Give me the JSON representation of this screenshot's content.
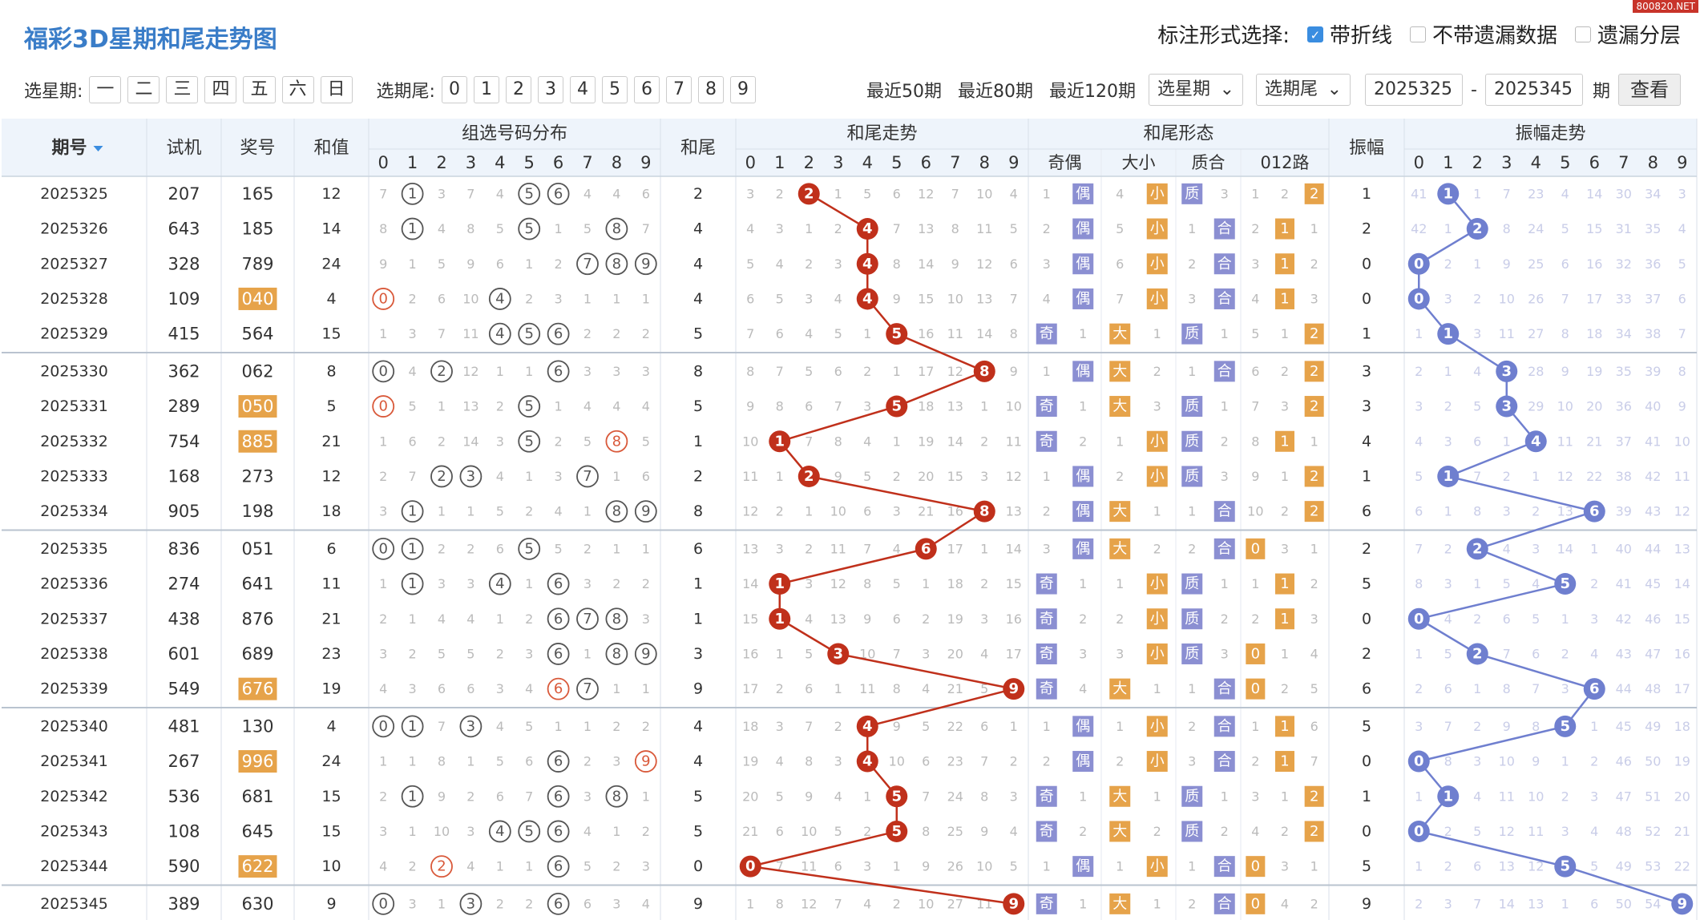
{
  "title": "福彩3D星期和尾走势图",
  "site_tag": "800820.NET",
  "mark": {
    "label": "标注形式选择:",
    "options": [
      {
        "label": "带折线",
        "checked": true
      },
      {
        "label": "不带遗漏数据",
        "checked": false
      },
      {
        "label": "遗漏分层",
        "checked": false
      }
    ]
  },
  "filter": {
    "weekday_label": "选星期:",
    "weekdays": [
      "一",
      "二",
      "三",
      "四",
      "五",
      "六",
      "日"
    ],
    "tail_label": "选期尾:",
    "tails": [
      "0",
      "1",
      "2",
      "3",
      "4",
      "5",
      "6",
      "7",
      "8",
      "9"
    ],
    "recent": [
      "最近50期",
      "最近80期",
      "最近120期"
    ],
    "weekday_select": "选星期",
    "tail_select": "选期尾",
    "from": "2025325",
    "dash": "-",
    "to": "2025345",
    "unit": "期",
    "submit": "查看"
  },
  "columns": {
    "issue": "期号",
    "trial": "试机",
    "prize": "奖号",
    "sum": "和值",
    "group_dist": "组选号码分布",
    "tail": "和尾",
    "tail_trend": "和尾走势",
    "tail_form": "和尾形态",
    "amp": "振幅",
    "amp_trend": "振幅走势",
    "form_sub": [
      "奇偶",
      "大小",
      "质合",
      "012路"
    ],
    "digits": [
      "0",
      "1",
      "2",
      "3",
      "4",
      "5",
      "6",
      "7",
      "8",
      "9"
    ]
  },
  "labels": {
    "odd": "奇",
    "even": "偶",
    "big": "大",
    "small": "小",
    "prime": "质",
    "composite": "合"
  },
  "colors": {
    "accent": "#3a7dc8",
    "tail_ball": "#c0301b",
    "amp_ball": "#6f7fcf",
    "highlight": "#e6a34a",
    "form_badge": "#8b8fd2"
  },
  "rows": [
    {
      "issue": "2025325",
      "trial": "207",
      "prize": "165",
      "sum": "12",
      "dist": [
        "7",
        "●",
        "3",
        "7",
        "4",
        "●",
        "●",
        "4",
        "4",
        "6"
      ],
      "tail": "2",
      "trend": [
        "3",
        "2",
        "2",
        "1",
        "5",
        "6",
        "12",
        "7",
        "10",
        "4"
      ],
      "oe": [
        "1",
        "偶"
      ],
      "bs": [
        "4",
        "小"
      ],
      "pc": [
        "质",
        "3"
      ],
      "r012": [
        "1",
        "2",
        "2"
      ],
      "amp": "1",
      "ampt": [
        "41",
        "1",
        "1",
        "7",
        "23",
        "4",
        "14",
        "30",
        "34",
        "3"
      ],
      "hl": false
    },
    {
      "issue": "2025326",
      "trial": "643",
      "prize": "185",
      "sum": "14",
      "dist": [
        "8",
        "●",
        "4",
        "8",
        "5",
        "●",
        "1",
        "5",
        "●",
        "7"
      ],
      "tail": "4",
      "trend": [
        "4",
        "3",
        "1",
        "2",
        "4",
        "7",
        "13",
        "8",
        "11",
        "5"
      ],
      "oe": [
        "2",
        "偶"
      ],
      "bs": [
        "5",
        "小"
      ],
      "pc": [
        "1",
        "合"
      ],
      "r012": [
        "2",
        "1",
        "1"
      ],
      "amp": "2",
      "ampt": [
        "42",
        "1",
        "2",
        "8",
        "24",
        "5",
        "15",
        "31",
        "35",
        "4"
      ],
      "hl": false
    },
    {
      "issue": "2025327",
      "trial": "328",
      "prize": "789",
      "sum": "24",
      "dist": [
        "9",
        "1",
        "5",
        "9",
        "6",
        "1",
        "2",
        "●",
        "●",
        "●"
      ],
      "tail": "4",
      "trend": [
        "5",
        "4",
        "2",
        "3",
        "4",
        "8",
        "14",
        "9",
        "12",
        "6"
      ],
      "oe": [
        "3",
        "偶"
      ],
      "bs": [
        "6",
        "小"
      ],
      "pc": [
        "2",
        "合"
      ],
      "r012": [
        "3",
        "1",
        "2"
      ],
      "amp": "0",
      "ampt": [
        "0",
        "2",
        "1",
        "9",
        "25",
        "6",
        "16",
        "32",
        "36",
        "5"
      ],
      "hl": false
    },
    {
      "issue": "2025328",
      "trial": "109",
      "prize": "040",
      "sum": "4",
      "dist": [
        "●",
        "2",
        "6",
        "10",
        "●",
        "2",
        "3",
        "1",
        "1",
        "1"
      ],
      "tail": "4",
      "trend": [
        "6",
        "5",
        "3",
        "4",
        "4",
        "9",
        "15",
        "10",
        "13",
        "7"
      ],
      "oe": [
        "4",
        "偶"
      ],
      "bs": [
        "7",
        "小"
      ],
      "pc": [
        "3",
        "合"
      ],
      "r012": [
        "4",
        "1",
        "3"
      ],
      "amp": "0",
      "ampt": [
        "0",
        "3",
        "2",
        "10",
        "26",
        "7",
        "17",
        "33",
        "37",
        "6"
      ],
      "hl": true
    },
    {
      "issue": "2025329",
      "trial": "415",
      "prize": "564",
      "sum": "15",
      "dist": [
        "1",
        "3",
        "7",
        "11",
        "●",
        "●",
        "●",
        "2",
        "2",
        "2"
      ],
      "tail": "5",
      "trend": [
        "7",
        "6",
        "4",
        "5",
        "1",
        "5",
        "16",
        "11",
        "14",
        "8"
      ],
      "oe": [
        "奇",
        "1"
      ],
      "bs": [
        "大",
        "1"
      ],
      "pc": [
        "质",
        "1"
      ],
      "r012": [
        "5",
        "1",
        "2"
      ],
      "amp": "1",
      "ampt": [
        "1",
        "1",
        "3",
        "11",
        "27",
        "8",
        "18",
        "34",
        "38",
        "7"
      ],
      "hl": false
    },
    {
      "issue": "2025330",
      "trial": "362",
      "prize": "062",
      "sum": "8",
      "dist": [
        "●",
        "4",
        "●",
        "12",
        "1",
        "1",
        "●",
        "3",
        "3",
        "3"
      ],
      "tail": "8",
      "trend": [
        "8",
        "7",
        "5",
        "6",
        "2",
        "1",
        "17",
        "12",
        "8",
        "9"
      ],
      "oe": [
        "1",
        "偶"
      ],
      "bs": [
        "大",
        "2"
      ],
      "pc": [
        "1",
        "合"
      ],
      "r012": [
        "6",
        "2",
        "2"
      ],
      "amp": "3",
      "ampt": [
        "2",
        "1",
        "4",
        "3",
        "28",
        "9",
        "19",
        "35",
        "39",
        "8"
      ],
      "hl": false
    },
    {
      "issue": "2025331",
      "trial": "289",
      "prize": "050",
      "sum": "5",
      "dist": [
        "●",
        "5",
        "1",
        "13",
        "2",
        "●",
        "1",
        "4",
        "4",
        "4"
      ],
      "tail": "5",
      "trend": [
        "9",
        "8",
        "6",
        "7",
        "3",
        "5",
        "18",
        "13",
        "1",
        "10"
      ],
      "oe": [
        "奇",
        "1"
      ],
      "bs": [
        "大",
        "3"
      ],
      "pc": [
        "质",
        "1"
      ],
      "r012": [
        "7",
        "3",
        "2"
      ],
      "amp": "3",
      "ampt": [
        "3",
        "2",
        "5",
        "3",
        "29",
        "10",
        "20",
        "36",
        "40",
        "9"
      ],
      "hl": true
    },
    {
      "issue": "2025332",
      "trial": "754",
      "prize": "885",
      "sum": "21",
      "dist": [
        "1",
        "6",
        "2",
        "14",
        "3",
        "●",
        "2",
        "5",
        "●",
        "5"
      ],
      "tail": "1",
      "trend": [
        "10",
        "1",
        "7",
        "8",
        "4",
        "1",
        "19",
        "14",
        "2",
        "11"
      ],
      "oe": [
        "奇",
        "2"
      ],
      "bs": [
        "1",
        "小"
      ],
      "pc": [
        "质",
        "2"
      ],
      "r012": [
        "8",
        "1",
        "1"
      ],
      "amp": "4",
      "ampt": [
        "4",
        "3",
        "6",
        "1",
        "4",
        "11",
        "21",
        "37",
        "41",
        "10"
      ],
      "hl": true
    },
    {
      "issue": "2025333",
      "trial": "168",
      "prize": "273",
      "sum": "12",
      "dist": [
        "2",
        "7",
        "●",
        "●",
        "4",
        "1",
        "3",
        "●",
        "1",
        "6"
      ],
      "tail": "2",
      "trend": [
        "11",
        "1",
        "2",
        "9",
        "5",
        "2",
        "20",
        "15",
        "3",
        "12"
      ],
      "oe": [
        "1",
        "偶"
      ],
      "bs": [
        "2",
        "小"
      ],
      "pc": [
        "质",
        "3"
      ],
      "r012": [
        "9",
        "1",
        "2"
      ],
      "amp": "1",
      "ampt": [
        "5",
        "1",
        "7",
        "2",
        "1",
        "12",
        "22",
        "38",
        "42",
        "11"
      ],
      "hl": false
    },
    {
      "issue": "2025334",
      "trial": "905",
      "prize": "198",
      "sum": "18",
      "dist": [
        "3",
        "●",
        "1",
        "1",
        "5",
        "2",
        "4",
        "1",
        "●",
        "●"
      ],
      "tail": "8",
      "trend": [
        "12",
        "2",
        "1",
        "10",
        "6",
        "3",
        "21",
        "16",
        "8",
        "13"
      ],
      "oe": [
        "2",
        "偶"
      ],
      "bs": [
        "大",
        "1"
      ],
      "pc": [
        "1",
        "合"
      ],
      "r012": [
        "10",
        "2",
        "2"
      ],
      "amp": "6",
      "ampt": [
        "6",
        "1",
        "8",
        "3",
        "2",
        "13",
        "6",
        "39",
        "43",
        "12"
      ],
      "hl": false
    },
    {
      "issue": "2025335",
      "trial": "836",
      "prize": "051",
      "sum": "6",
      "dist": [
        "●",
        "●",
        "2",
        "2",
        "6",
        "●",
        "5",
        "2",
        "1",
        "1"
      ],
      "tail": "6",
      "trend": [
        "13",
        "3",
        "2",
        "11",
        "7",
        "4",
        "6",
        "17",
        "1",
        "14"
      ],
      "oe": [
        "3",
        "偶"
      ],
      "bs": [
        "大",
        "2"
      ],
      "pc": [
        "2",
        "合"
      ],
      "r012": [
        "0",
        "3",
        "1"
      ],
      "amp": "2",
      "ampt": [
        "7",
        "2",
        "2",
        "4",
        "3",
        "14",
        "1",
        "40",
        "44",
        "13"
      ],
      "hl": false
    },
    {
      "issue": "2025336",
      "trial": "274",
      "prize": "641",
      "sum": "11",
      "dist": [
        "1",
        "●",
        "3",
        "3",
        "●",
        "1",
        "●",
        "3",
        "2",
        "2"
      ],
      "tail": "1",
      "trend": [
        "14",
        "1",
        "3",
        "12",
        "8",
        "5",
        "1",
        "18",
        "2",
        "15"
      ],
      "oe": [
        "奇",
        "1"
      ],
      "bs": [
        "1",
        "小"
      ],
      "pc": [
        "质",
        "1"
      ],
      "r012": [
        "1",
        "1",
        "2"
      ],
      "amp": "5",
      "ampt": [
        "8",
        "3",
        "1",
        "5",
        "4",
        "5",
        "2",
        "41",
        "45",
        "14"
      ],
      "hl": false
    },
    {
      "issue": "2025337",
      "trial": "438",
      "prize": "876",
      "sum": "21",
      "dist": [
        "2",
        "1",
        "4",
        "4",
        "1",
        "2",
        "●",
        "●",
        "●",
        "3"
      ],
      "tail": "1",
      "trend": [
        "15",
        "1",
        "4",
        "13",
        "9",
        "6",
        "2",
        "19",
        "3",
        "16"
      ],
      "oe": [
        "奇",
        "2"
      ],
      "bs": [
        "2",
        "小"
      ],
      "pc": [
        "质",
        "2"
      ],
      "r012": [
        "2",
        "1",
        "3"
      ],
      "amp": "0",
      "ampt": [
        "0",
        "4",
        "2",
        "6",
        "5",
        "1",
        "3",
        "42",
        "46",
        "15"
      ],
      "hl": false
    },
    {
      "issue": "2025338",
      "trial": "601",
      "prize": "689",
      "sum": "23",
      "dist": [
        "3",
        "2",
        "5",
        "5",
        "2",
        "3",
        "●",
        "1",
        "●",
        "●"
      ],
      "tail": "3",
      "trend": [
        "16",
        "1",
        "5",
        "3",
        "10",
        "7",
        "3",
        "20",
        "4",
        "17"
      ],
      "oe": [
        "奇",
        "3"
      ],
      "bs": [
        "3",
        "小"
      ],
      "pc": [
        "质",
        "3"
      ],
      "r012": [
        "0",
        "1",
        "4"
      ],
      "amp": "2",
      "ampt": [
        "1",
        "5",
        "2",
        "7",
        "6",
        "2",
        "4",
        "43",
        "47",
        "16"
      ],
      "hl": false
    },
    {
      "issue": "2025339",
      "trial": "549",
      "prize": "676",
      "sum": "19",
      "dist": [
        "4",
        "3",
        "6",
        "6",
        "3",
        "4",
        "●",
        "●",
        "1",
        "1"
      ],
      "tail": "9",
      "trend": [
        "17",
        "2",
        "6",
        "1",
        "11",
        "8",
        "4",
        "21",
        "5",
        "9"
      ],
      "oe": [
        "奇",
        "4"
      ],
      "bs": [
        "大",
        "1"
      ],
      "pc": [
        "1",
        "合"
      ],
      "r012": [
        "0",
        "2",
        "5"
      ],
      "amp": "6",
      "ampt": [
        "2",
        "6",
        "1",
        "8",
        "7",
        "3",
        "6",
        "44",
        "48",
        "17"
      ],
      "hl": true
    },
    {
      "issue": "2025340",
      "trial": "481",
      "prize": "130",
      "sum": "4",
      "dist": [
        "●",
        "●",
        "7",
        "●",
        "4",
        "5",
        "1",
        "1",
        "2",
        "2"
      ],
      "tail": "4",
      "trend": [
        "18",
        "3",
        "7",
        "2",
        "4",
        "9",
        "5",
        "22",
        "6",
        "1"
      ],
      "oe": [
        "1",
        "偶"
      ],
      "bs": [
        "1",
        "小"
      ],
      "pc": [
        "2",
        "合"
      ],
      "r012": [
        "1",
        "1",
        "6"
      ],
      "amp": "5",
      "ampt": [
        "3",
        "7",
        "2",
        "9",
        "8",
        "5",
        "1",
        "45",
        "49",
        "18"
      ],
      "hl": false
    },
    {
      "issue": "2025341",
      "trial": "267",
      "prize": "996",
      "sum": "24",
      "dist": [
        "1",
        "1",
        "8",
        "1",
        "5",
        "6",
        "●",
        "2",
        "3",
        "●"
      ],
      "tail": "4",
      "trend": [
        "19",
        "4",
        "8",
        "3",
        "4",
        "10",
        "6",
        "23",
        "7",
        "2"
      ],
      "oe": [
        "2",
        "偶"
      ],
      "bs": [
        "2",
        "小"
      ],
      "pc": [
        "3",
        "合"
      ],
      "r012": [
        "2",
        "1",
        "7"
      ],
      "amp": "0",
      "ampt": [
        "0",
        "8",
        "3",
        "10",
        "9",
        "1",
        "2",
        "46",
        "50",
        "19"
      ],
      "hl": true
    },
    {
      "issue": "2025342",
      "trial": "536",
      "prize": "681",
      "sum": "15",
      "dist": [
        "2",
        "●",
        "9",
        "2",
        "6",
        "7",
        "●",
        "3",
        "●",
        "1"
      ],
      "tail": "5",
      "trend": [
        "20",
        "5",
        "9",
        "4",
        "1",
        "5",
        "7",
        "24",
        "8",
        "3"
      ],
      "oe": [
        "奇",
        "1"
      ],
      "bs": [
        "大",
        "1"
      ],
      "pc": [
        "质",
        "1"
      ],
      "r012": [
        "3",
        "1",
        "2"
      ],
      "amp": "1",
      "ampt": [
        "1",
        "1",
        "4",
        "11",
        "10",
        "2",
        "3",
        "47",
        "51",
        "20"
      ],
      "hl": false
    },
    {
      "issue": "2025343",
      "trial": "108",
      "prize": "645",
      "sum": "15",
      "dist": [
        "3",
        "1",
        "10",
        "3",
        "●",
        "●",
        "●",
        "4",
        "1",
        "2"
      ],
      "tail": "5",
      "trend": [
        "21",
        "6",
        "10",
        "5",
        "2",
        "5",
        "8",
        "25",
        "9",
        "4"
      ],
      "oe": [
        "奇",
        "2"
      ],
      "bs": [
        "大",
        "2"
      ],
      "pc": [
        "质",
        "2"
      ],
      "r012": [
        "4",
        "2",
        "2"
      ],
      "amp": "0",
      "ampt": [
        "0",
        "2",
        "5",
        "12",
        "11",
        "3",
        "4",
        "48",
        "52",
        "21"
      ],
      "hl": false
    },
    {
      "issue": "2025344",
      "trial": "590",
      "prize": "622",
      "sum": "10",
      "dist": [
        "4",
        "2",
        "●",
        "4",
        "1",
        "1",
        "●",
        "5",
        "2",
        "3"
      ],
      "tail": "0",
      "trend": [
        "0",
        "7",
        "11",
        "6",
        "3",
        "1",
        "9",
        "26",
        "10",
        "5"
      ],
      "oe": [
        "1",
        "偶"
      ],
      "bs": [
        "1",
        "小"
      ],
      "pc": [
        "1",
        "合"
      ],
      "r012": [
        "0",
        "3",
        "1"
      ],
      "amp": "5",
      "ampt": [
        "1",
        "2",
        "6",
        "13",
        "12",
        "5",
        "5",
        "49",
        "53",
        "22"
      ],
      "hl": true
    },
    {
      "issue": "2025345",
      "trial": "389",
      "prize": "630",
      "sum": "9",
      "dist": [
        "●",
        "3",
        "1",
        "●",
        "2",
        "2",
        "●",
        "6",
        "3",
        "4"
      ],
      "tail": "9",
      "trend": [
        "1",
        "8",
        "12",
        "7",
        "4",
        "2",
        "10",
        "27",
        "11",
        "9"
      ],
      "oe": [
        "奇",
        "1"
      ],
      "bs": [
        "大",
        "1"
      ],
      "pc": [
        "2",
        "合"
      ],
      "r012": [
        "0",
        "4",
        "2"
      ],
      "amp": "9",
      "ampt": [
        "2",
        "3",
        "7",
        "14",
        "13",
        "1",
        "6",
        "50",
        "54",
        "9"
      ],
      "hl": false
    }
  ]
}
